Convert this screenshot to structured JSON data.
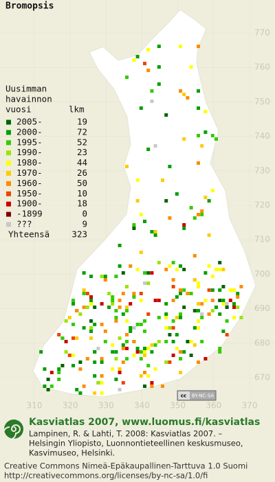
{
  "title": "Bromopsis",
  "legend": {
    "heading": [
      "Uusimman",
      "havainnon",
      "vuosi"
    ],
    "count_header": "lkm",
    "rows": [
      {
        "label": "2005-",
        "count": 19,
        "color": "#006400"
      },
      {
        "label": "2000-",
        "count": 72,
        "color": "#00a000"
      },
      {
        "label": "1995-",
        "count": 52,
        "color": "#33cc00"
      },
      {
        "label": "1990-",
        "count": 23,
        "color": "#99e600"
      },
      {
        "label": "1980-",
        "count": 44,
        "color": "#ffff00"
      },
      {
        "label": "1970-",
        "count": 26,
        "color": "#ffcc00"
      },
      {
        "label": "1960-",
        "count": 50,
        "color": "#ff8c00"
      },
      {
        "label": "1950-",
        "count": 10,
        "color": "#ee4400"
      },
      {
        "label": "1900-",
        "count": 18,
        "color": "#cc0000"
      },
      {
        "label": "-1899",
        "count": 0,
        "color": "#800000"
      },
      {
        "label": "???",
        "count": 9,
        "color": "#c8c8c8"
      }
    ],
    "total_label": "Yhteensä",
    "total": 323
  },
  "grid": {
    "northing": [
      770,
      760,
      750,
      740,
      730,
      720,
      710,
      700,
      690,
      680,
      670
    ],
    "easting": [
      310,
      320,
      330,
      340,
      350,
      360,
      370
    ]
  },
  "license_badge": "BY-NC-SA",
  "footer": {
    "heading": "Kasviatlas 2007, www.luomus.fi/kasviatlas",
    "citation": [
      "Lampinen, R. & Lahti, T. 2008: Kasviatlas 2007. –",
      "Helsingin Yliopisto, Luonnontieteellinen keskusmuseo,",
      "Kasvimuseo, Helsinki."
    ],
    "license": [
      "Creative Commons Nimeä-Epäkaupallinen-Tarttuva 1.0 Suomi",
      "http://creativecommons.org/licenses/by-nc-sa/1.0/fi"
    ]
  }
}
